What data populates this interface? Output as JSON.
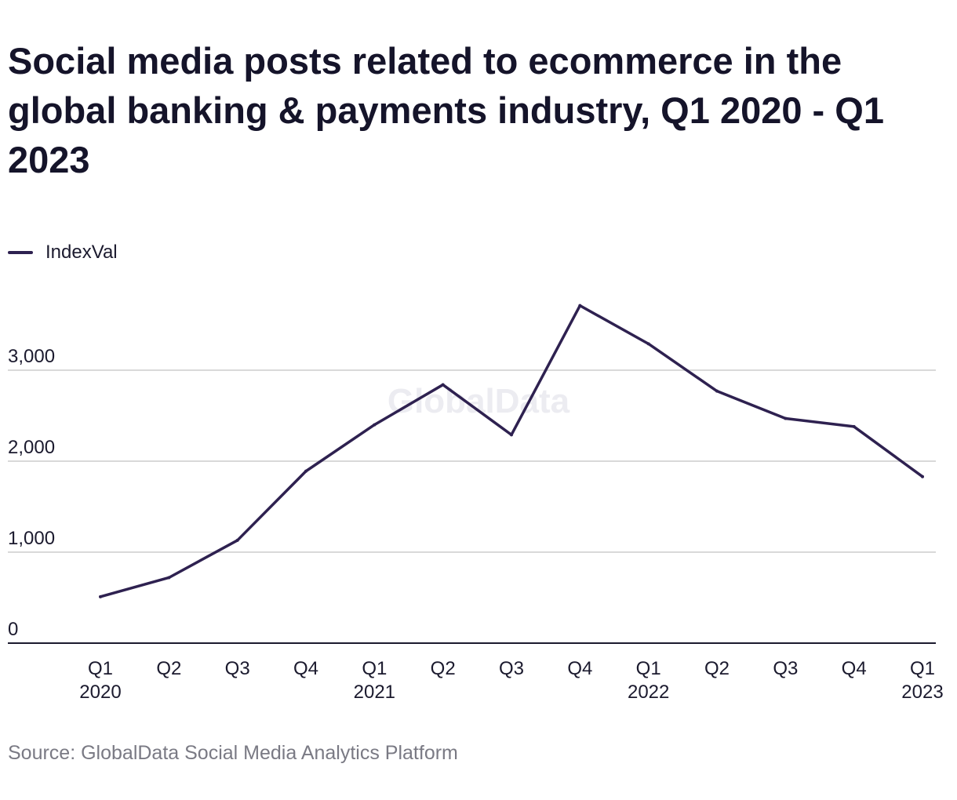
{
  "title": "Social media posts related to ecommerce in the global banking & payments industry, Q1 2020 - Q1 2023",
  "source": "Source: GlobalData Social Media Analytics Platform",
  "watermark": "GlobalData",
  "colors": {
    "line": "#2e2150",
    "grid": "#d9d9d9",
    "axis": "#1b1a2e",
    "text": "#1b1a2e",
    "source": "#7a7a84"
  },
  "chart_data": {
    "type": "line",
    "title": "Social media posts related to ecommerce in the global banking & payments industry, Q1 2020 - Q1 2023",
    "legend_position": "top-left",
    "grid": true,
    "ylim": [
      0,
      3600
    ],
    "yticks": [
      0,
      1000,
      2000,
      3000
    ],
    "ytick_labels": [
      "0",
      "1,000",
      "2,000",
      "3,000"
    ],
    "categories": [
      [
        "Q1",
        "2020"
      ],
      [
        "Q2",
        ""
      ],
      [
        "Q3",
        ""
      ],
      [
        "Q4",
        ""
      ],
      [
        "Q1",
        "2021"
      ],
      [
        "Q2",
        ""
      ],
      [
        "Q3",
        ""
      ],
      [
        "Q4",
        ""
      ],
      [
        "Q1",
        "2022"
      ],
      [
        "Q2",
        ""
      ],
      [
        "Q3",
        ""
      ],
      [
        "Q4",
        ""
      ],
      [
        "Q1",
        "2023"
      ]
    ],
    "series": [
      {
        "name": "IndexVal",
        "values": [
          510,
          720,
          1130,
          1890,
          2400,
          2840,
          2290,
          3710,
          3290,
          2770,
          2470,
          2380,
          1830
        ]
      }
    ]
  }
}
